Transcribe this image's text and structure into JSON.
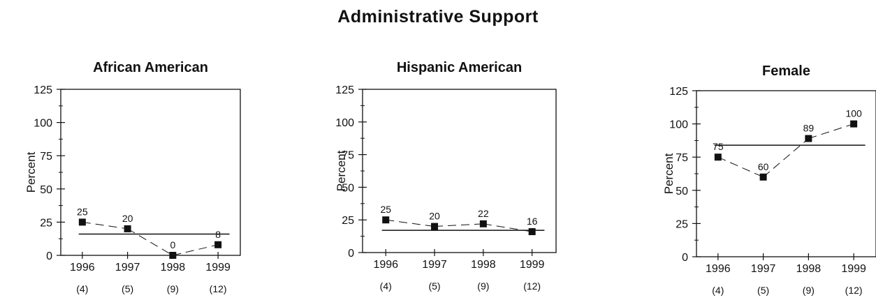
{
  "title": "Administrative Support",
  "chart_data": [
    {
      "type": "line",
      "title": "African American",
      "ylabel": "Percent",
      "ylim": [
        0,
        125
      ],
      "yticks": [
        0,
        25,
        50,
        75,
        100,
        125
      ],
      "categories": [
        "1996",
        "1997",
        "1998",
        "1999"
      ],
      "counts": [
        "(4)",
        "(5)",
        "(9)",
        "(12)"
      ],
      "values": [
        25,
        20,
        0,
        8
      ],
      "data_labels": [
        "25",
        "20",
        "0",
        "8"
      ],
      "reference_line": 16
    },
    {
      "type": "line",
      "title": "Hispanic American",
      "ylabel": "Percent",
      "ylim": [
        0,
        125
      ],
      "yticks": [
        0,
        25,
        50,
        75,
        100,
        125
      ],
      "categories": [
        "1996",
        "1997",
        "1998",
        "1999"
      ],
      "counts": [
        "(4)",
        "(5)",
        "(9)",
        "(12)"
      ],
      "values": [
        25,
        20,
        22,
        16
      ],
      "data_labels": [
        "25",
        "20",
        "22",
        "16"
      ],
      "reference_line": 17
    },
    {
      "type": "line",
      "title": "Female",
      "ylabel": "Percent",
      "ylim": [
        0,
        125
      ],
      "yticks": [
        0,
        25,
        50,
        75,
        100,
        125
      ],
      "categories": [
        "1996",
        "1997",
        "1998",
        "1999"
      ],
      "counts": [
        "(4)",
        "(5)",
        "(9)",
        "(12)"
      ],
      "values": [
        75,
        60,
        89,
        100
      ],
      "data_labels": [
        "75",
        "60",
        "89",
        "100"
      ],
      "reference_line": 84
    }
  ]
}
